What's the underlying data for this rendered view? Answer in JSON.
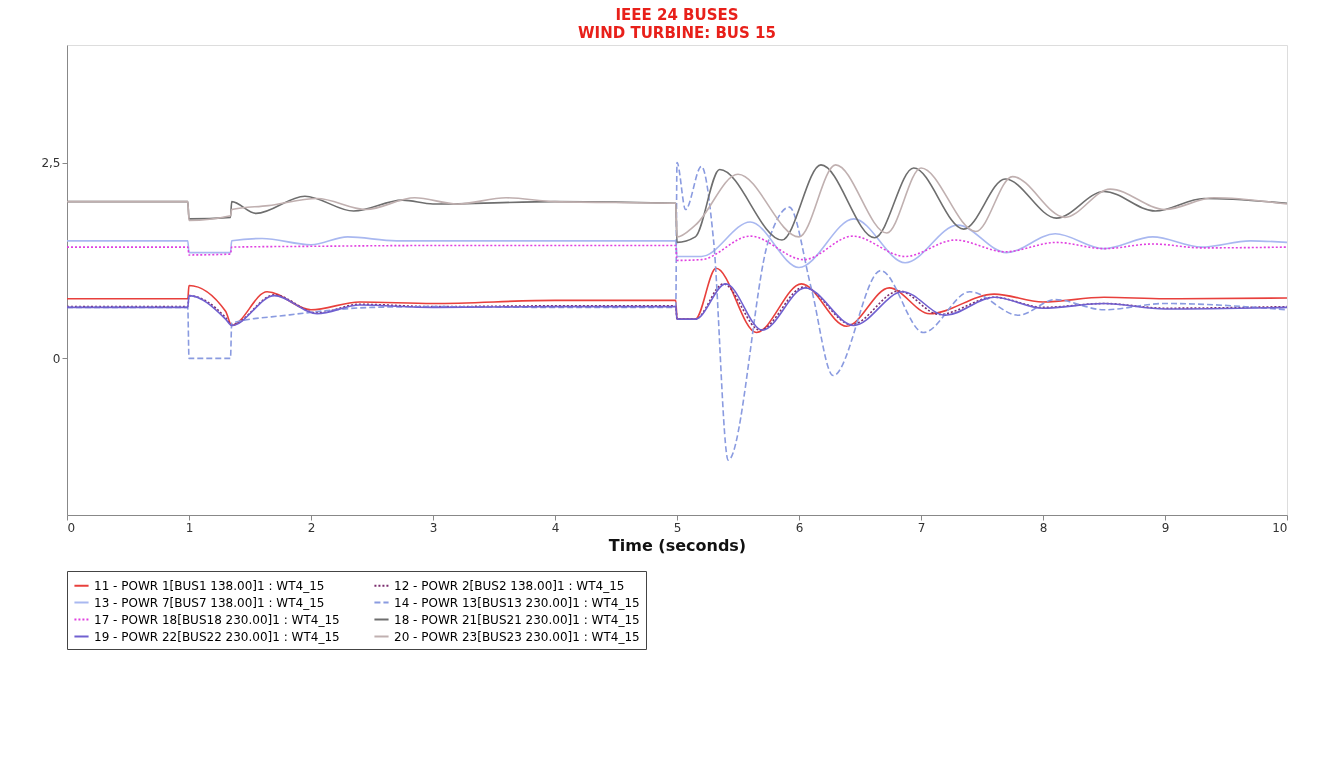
{
  "chart_data": {
    "type": "line",
    "title": "IEEE 24 BUSES",
    "subtitle": "WIND TURBINE: BUS 15",
    "xlabel": "Time (seconds)",
    "xlim": [
      0,
      10
    ],
    "xticks": [
      0,
      1,
      2,
      3,
      4,
      5,
      6,
      7,
      8,
      9,
      10
    ],
    "ylim": [
      -2,
      4
    ],
    "yticks": [
      0,
      {
        "value": 2.5,
        "label": "2,5"
      }
    ],
    "grid": false,
    "legend": "bottom",
    "marker": "none",
    "series": [
      {
        "name": "11 - POWR 1[BUS1 138.00]1 : WT4_15",
        "color": "#e8403c",
        "line_style": "solid",
        "x": [
          0,
          0.99,
          1.0,
          1.3,
          1.35,
          1.64,
          2.0,
          2.4,
          3.0,
          4.0,
          4.99,
          5.0,
          5.15,
          5.32,
          5.65,
          6.02,
          6.39,
          6.74,
          7.07,
          7.6,
          8.0,
          8.5,
          9.0,
          10.0
        ],
        "values": [
          0.76,
          0.76,
          0.93,
          0.6,
          0.42,
          0.85,
          0.62,
          0.72,
          0.7,
          0.74,
          0.74,
          0.5,
          0.5,
          1.15,
          0.33,
          0.95,
          0.41,
          0.9,
          0.57,
          0.82,
          0.72,
          0.78,
          0.76,
          0.77
        ]
      },
      {
        "name": "12 - POWR 2[BUS2 138.00]1 : WT4_15",
        "color": "#7b2d6e",
        "line_style": "dotted",
        "x": [
          0,
          0.99,
          1.0,
          1.3,
          1.35,
          1.7,
          2.05,
          2.4,
          3.0,
          4.0,
          4.99,
          5.0,
          5.15,
          5.38,
          5.68,
          6.04,
          6.43,
          6.82,
          7.15,
          7.6,
          8.0,
          8.5,
          9.0,
          10.0
        ],
        "values": [
          0.66,
          0.66,
          0.8,
          0.52,
          0.43,
          0.81,
          0.58,
          0.69,
          0.66,
          0.67,
          0.67,
          0.5,
          0.5,
          0.95,
          0.36,
          0.91,
          0.43,
          0.86,
          0.56,
          0.78,
          0.65,
          0.7,
          0.64,
          0.66
        ]
      },
      {
        "name": "13 - POWR 7[BUS7 138.00]1 : WT4_15",
        "color": "#a9b8f0",
        "line_style": "solid",
        "x": [
          0,
          0.99,
          1.0,
          1.34,
          1.35,
          1.6,
          2.0,
          2.3,
          2.7,
          3.0,
          4.0,
          4.99,
          5.0,
          5.2,
          5.6,
          6.0,
          6.45,
          6.87,
          7.3,
          7.7,
          8.1,
          8.5,
          8.9,
          9.3,
          9.7,
          10.0
        ],
        "values": [
          1.5,
          1.5,
          1.35,
          1.35,
          1.5,
          1.53,
          1.45,
          1.55,
          1.5,
          1.5,
          1.5,
          1.5,
          1.3,
          1.3,
          1.74,
          1.16,
          1.78,
          1.22,
          1.7,
          1.35,
          1.59,
          1.4,
          1.55,
          1.42,
          1.5,
          1.48
        ]
      },
      {
        "name": "14 - POWR 13[BUS13 230.00]1 : WT4_15",
        "color": "#8a9be0",
        "line_style": "dashed",
        "x": [
          0,
          0.99,
          1.0,
          1.34,
          1.35,
          1.8,
          2.5,
          3.0,
          4.0,
          4.99,
          5.0,
          5.07,
          5.2,
          5.3,
          5.42,
          5.75,
          5.92,
          6.1,
          6.28,
          6.67,
          7.02,
          7.4,
          7.8,
          8.1,
          8.5,
          9.0,
          10.0
        ],
        "values": [
          0.65,
          0.65,
          0.0,
          0.0,
          0.45,
          0.55,
          0.65,
          0.66,
          0.65,
          0.65,
          2.5,
          1.9,
          2.45,
          1.5,
          -1.3,
          1.5,
          1.93,
          0.9,
          -0.22,
          1.12,
          0.33,
          0.85,
          0.55,
          0.75,
          0.62,
          0.7,
          0.62
        ]
      },
      {
        "name": "17 - POWR 18[BUS18 230.00]1 : WT4_15",
        "color": "#e040e0",
        "line_style": "dotted",
        "x": [
          0,
          0.99,
          1.0,
          1.34,
          1.35,
          2.0,
          3.0,
          4.0,
          4.99,
          5.0,
          5.2,
          5.6,
          6.04,
          6.44,
          6.87,
          7.28,
          7.69,
          8.11,
          8.5,
          8.9,
          9.3,
          10.0
        ],
        "values": [
          1.42,
          1.42,
          1.32,
          1.33,
          1.42,
          1.43,
          1.44,
          1.44,
          1.44,
          1.25,
          1.26,
          1.56,
          1.26,
          1.56,
          1.3,
          1.51,
          1.36,
          1.48,
          1.4,
          1.46,
          1.41,
          1.42
        ]
      },
      {
        "name": "18 - POWR 21[BUS21 230.00]1 : WT4_15",
        "color": "#6e6e6e",
        "line_style": "solid",
        "x": [
          0,
          0.99,
          1.0,
          1.34,
          1.35,
          1.55,
          1.95,
          2.35,
          2.75,
          3.0,
          4.0,
          4.99,
          5.0,
          5.15,
          5.35,
          5.86,
          6.18,
          6.62,
          6.94,
          7.35,
          7.69,
          8.11,
          8.5,
          8.92,
          9.32,
          10.0
        ],
        "values": [
          2.0,
          2.0,
          1.78,
          1.8,
          2.0,
          1.85,
          2.07,
          1.88,
          2.02,
          1.97,
          2.0,
          1.98,
          1.48,
          1.55,
          2.41,
          1.51,
          2.47,
          1.54,
          2.43,
          1.65,
          2.29,
          1.79,
          2.13,
          1.88,
          2.04,
          1.98
        ]
      },
      {
        "name": "19 - POWR 22[BUS22 230.00]1 : WT4_15",
        "color": "#7060d0",
        "line_style": "solid",
        "x": [
          0,
          0.99,
          1.0,
          1.3,
          1.35,
          1.7,
          2.05,
          2.4,
          3.0,
          4.0,
          4.99,
          5.0,
          5.15,
          5.4,
          5.7,
          6.05,
          6.45,
          6.85,
          7.2,
          7.6,
          8.0,
          8.5,
          9.0,
          10.0
        ],
        "values": [
          0.65,
          0.65,
          0.8,
          0.5,
          0.42,
          0.8,
          0.57,
          0.68,
          0.65,
          0.66,
          0.66,
          0.5,
          0.5,
          0.95,
          0.36,
          0.9,
          0.42,
          0.85,
          0.55,
          0.78,
          0.64,
          0.7,
          0.63,
          0.65
        ]
      },
      {
        "name": "20 - POWR 23[BUS23 230.00]1 : WT4_15",
        "color": "#c0b0b0",
        "line_style": "solid",
        "x": [
          0,
          0.99,
          1.0,
          1.34,
          1.35,
          1.65,
          2.05,
          2.45,
          2.85,
          3.2,
          3.6,
          4.0,
          4.99,
          5.0,
          5.15,
          5.5,
          6.0,
          6.3,
          6.72,
          7.0,
          7.45,
          7.75,
          8.18,
          8.55,
          9.0,
          9.4,
          10.0
        ],
        "values": [
          2.0,
          2.0,
          1.76,
          1.82,
          1.9,
          1.95,
          2.04,
          1.9,
          2.05,
          1.97,
          2.05,
          2.0,
          1.98,
          1.55,
          1.7,
          2.35,
          1.55,
          2.47,
          1.6,
          2.43,
          1.62,
          2.32,
          1.8,
          2.16,
          1.9,
          2.05,
          1.97
        ]
      }
    ]
  }
}
